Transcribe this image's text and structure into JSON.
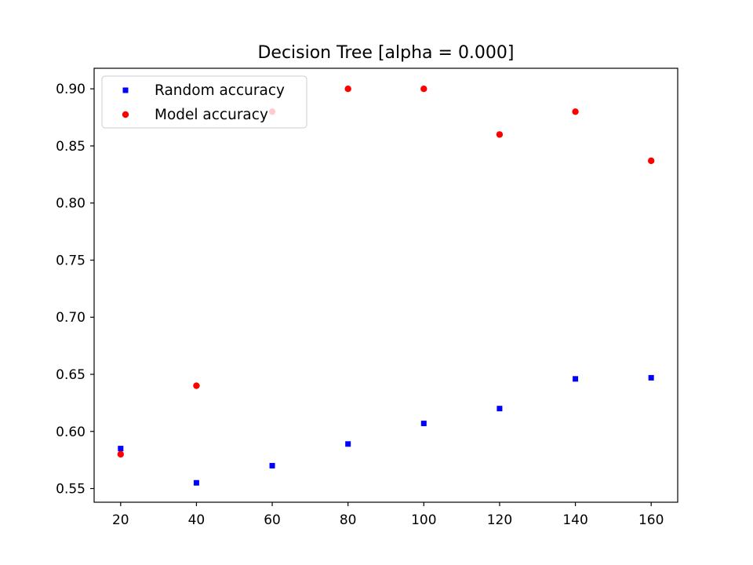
{
  "chart_data": {
    "type": "scatter",
    "title": "Decision Tree [alpha = 0.000]",
    "xlabel": "",
    "ylabel": "",
    "xlim": [
      13,
      167
    ],
    "ylim": [
      0.538,
      0.918
    ],
    "xticks": [
      20,
      40,
      60,
      80,
      100,
      120,
      140,
      160
    ],
    "xtick_labels": [
      "20",
      "40",
      "60",
      "80",
      "100",
      "120",
      "140",
      "160"
    ],
    "yticks": [
      0.55,
      0.6,
      0.65,
      0.7,
      0.75,
      0.8,
      0.85,
      0.9
    ],
    "ytick_labels": [
      "0.55",
      "0.60",
      "0.65",
      "0.70",
      "0.75",
      "0.80",
      "0.85",
      "0.90"
    ],
    "grid": false,
    "legend_position": "top-left",
    "series": [
      {
        "name": "Random accuracy",
        "marker": "square",
        "color": "#0000ff",
        "x": [
          20,
          40,
          60,
          80,
          100,
          120,
          140,
          160
        ],
        "y": [
          0.585,
          0.555,
          0.57,
          0.589,
          0.607,
          0.62,
          0.646,
          0.647
        ]
      },
      {
        "name": "Model accuracy",
        "marker": "circle",
        "color": "#ff0000",
        "x": [
          20,
          40,
          60,
          80,
          100,
          120,
          140,
          160
        ],
        "y": [
          0.58,
          0.64,
          0.88,
          0.9,
          0.9,
          0.86,
          0.88,
          0.837
        ]
      }
    ]
  }
}
